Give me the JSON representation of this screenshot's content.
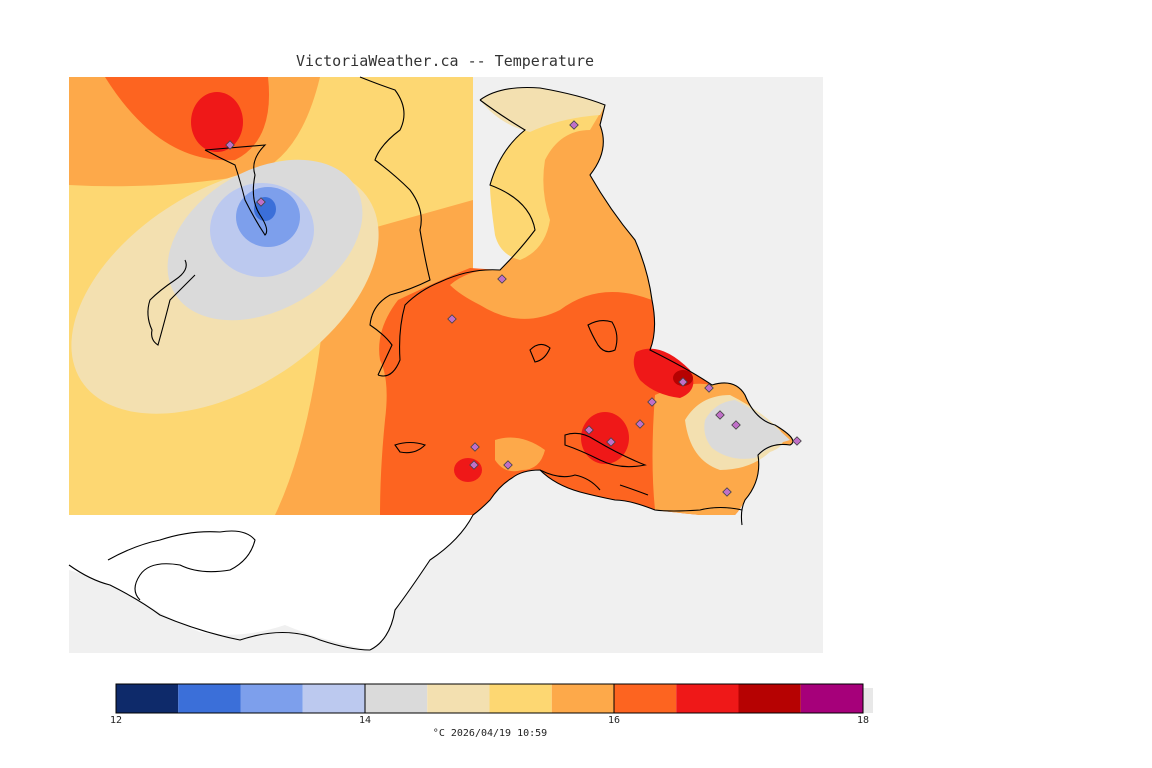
{
  "header": {
    "title": "VictoriaWeather.ca -- Temperature"
  },
  "legend": {
    "units": "°C",
    "timestamp": "2026/04/19 10:59",
    "min": 12,
    "max": 18,
    "bands": [
      {
        "from": 12.0,
        "to": 12.5,
        "color": "#0e2a6a"
      },
      {
        "from": 12.5,
        "to": 13.0,
        "color": "#3b6fd9"
      },
      {
        "from": 13.0,
        "to": 13.5,
        "color": "#7d9fec"
      },
      {
        "from": 13.5,
        "to": 14.0,
        "color": "#bcc9ef"
      },
      {
        "from": 14.0,
        "to": 14.5,
        "color": "#dadada"
      },
      {
        "from": 14.5,
        "to": 15.0,
        "color": "#f3e0b0"
      },
      {
        "from": 15.0,
        "to": 15.5,
        "color": "#fdd772"
      },
      {
        "from": 15.5,
        "to": 16.0,
        "color": "#fda94a"
      },
      {
        "from": 16.0,
        "to": 16.5,
        "color": "#fd6420"
      },
      {
        "from": 16.5,
        "to": 17.0,
        "color": "#ef1818"
      },
      {
        "from": 17.0,
        "to": 17.5,
        "color": "#b60202"
      },
      {
        "from": 17.5,
        "to": 18.0,
        "color": "#a6007a"
      }
    ],
    "ticks": [
      {
        "value": 12,
        "label": "12"
      },
      {
        "value": 14,
        "label": "14"
      },
      {
        "value": 16,
        "label": "16"
      },
      {
        "value": 18,
        "label": "18"
      }
    ]
  },
  "colors": {
    "land_background": "#fdd772",
    "water": "#f0f0f0",
    "station_marker": "#c070c8"
  }
}
